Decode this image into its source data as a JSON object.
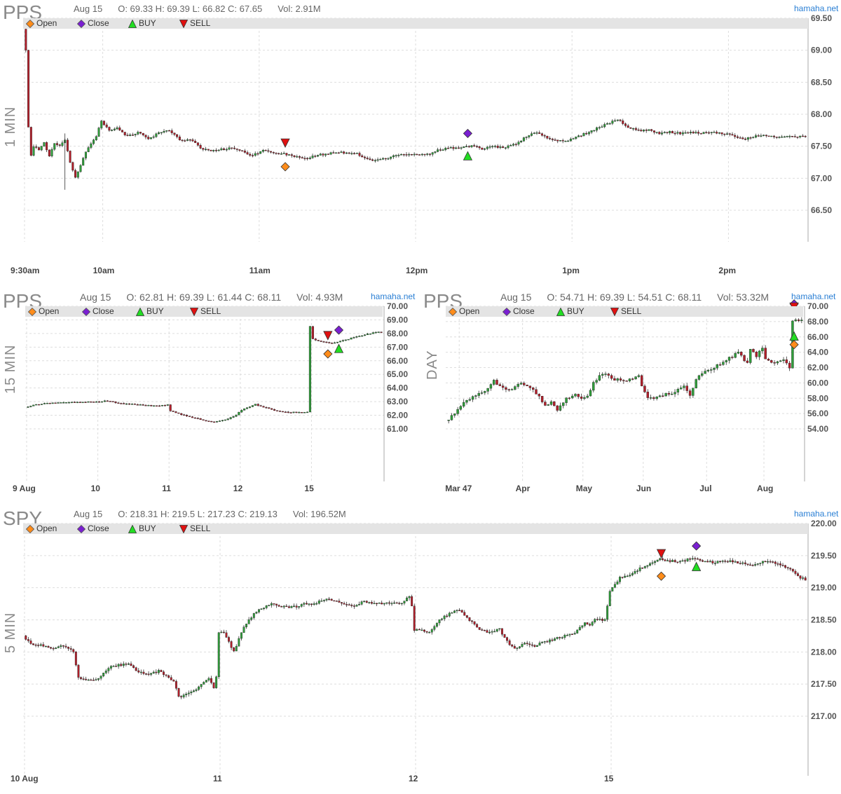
{
  "brand": "hamaha.net",
  "legend": [
    {
      "label": "Open",
      "shape": "diamond",
      "color": "#ff8c1a"
    },
    {
      "label": "Close",
      "shape": "diamond",
      "color": "#7a1fd1"
    },
    {
      "label": "BUY",
      "shape": "triangle-up",
      "color": "#22dd22"
    },
    {
      "label": "SELL",
      "shape": "triangle-down",
      "color": "#e01010"
    }
  ],
  "colors": {
    "up": "#2f9e3a",
    "down": "#b21e2a",
    "grid": "#dddddd",
    "axis": "#aaaaaa"
  },
  "panels": [
    {
      "id": "p1min",
      "ticker": "PPS",
      "timeframe": "1 MIN",
      "info": {
        "date": "Aug 15",
        "ohlc": "O: 69.33 H: 69.39 L: 66.82 C: 67.65",
        "vol": "Vol: 2.91M"
      }
    },
    {
      "id": "p15min",
      "ticker": "PPS",
      "timeframe": "15 MIN",
      "info": {
        "date": "Aug 15",
        "ohlc": "O: 62.81 H: 69.39 L: 61.44 C: 68.11",
        "vol": "Vol: 4.93M"
      }
    },
    {
      "id": "pday",
      "ticker": "PPS",
      "timeframe": "DAY",
      "info": {
        "date": "Aug 15",
        "ohlc": "O: 54.71 H: 69.39 L: 54.51 C: 68.11",
        "vol": "Vol: 53.32M"
      }
    },
    {
      "id": "p5min",
      "ticker": "SPY",
      "timeframe": "5 MIN",
      "info": {
        "date": "Aug 15",
        "ohlc": "O: 218.31 H: 219.5 L: 217.23 C: 219.13",
        "vol": "Vol: 196.52M"
      }
    }
  ],
  "chart_data": [
    {
      "type": "candlestick",
      "panel": "p1min",
      "ylim": [
        66.0,
        69.5
      ],
      "yticks": [
        "69.50",
        "69.00",
        "68.50",
        "68.00",
        "67.50",
        "67.00",
        "66.50"
      ],
      "xticks": [
        "9:30am",
        "10am",
        "11am",
        "12pm",
        "1pm",
        "2pm"
      ],
      "x_range_minutes": [
        0,
        300
      ],
      "xtick_minutes": [
        0,
        30,
        90,
        150,
        210,
        270
      ],
      "anchors": [
        [
          0,
          69.3
        ],
        [
          0.6,
          69.0
        ],
        [
          1,
          68.1
        ],
        [
          2,
          67.8
        ],
        [
          3,
          67.35
        ],
        [
          4,
          67.5
        ],
        [
          6,
          67.45
        ],
        [
          8,
          67.55
        ],
        [
          10,
          67.35
        ],
        [
          12,
          67.55
        ],
        [
          14,
          67.5
        ],
        [
          16,
          67.6
        ],
        [
          18,
          67.25
        ],
        [
          20,
          67.0
        ],
        [
          22,
          67.2
        ],
        [
          24,
          67.4
        ],
        [
          26,
          67.55
        ],
        [
          28,
          67.65
        ],
        [
          30,
          67.9
        ],
        [
          33,
          67.75
        ],
        [
          36,
          67.8
        ],
        [
          40,
          67.65
        ],
        [
          44,
          67.72
        ],
        [
          48,
          67.62
        ],
        [
          52,
          67.7
        ],
        [
          56,
          67.75
        ],
        [
          60,
          67.6
        ],
        [
          64,
          67.6
        ],
        [
          68,
          67.48
        ],
        [
          72,
          67.42
        ],
        [
          76,
          67.45
        ],
        [
          80,
          67.47
        ],
        [
          84,
          67.42
        ],
        [
          88,
          67.35
        ],
        [
          92,
          67.45
        ],
        [
          96,
          67.4
        ],
        [
          100,
          67.38
        ],
        [
          104,
          67.35
        ],
        [
          108,
          67.3
        ],
        [
          112,
          67.35
        ],
        [
          116,
          67.38
        ],
        [
          120,
          67.4
        ],
        [
          124,
          67.4
        ],
        [
          128,
          67.38
        ],
        [
          132,
          67.3
        ],
        [
          136,
          67.28
        ],
        [
          140,
          67.32
        ],
        [
          144,
          67.36
        ],
        [
          148,
          67.38
        ],
        [
          152,
          67.37
        ],
        [
          156,
          67.38
        ],
        [
          160,
          67.45
        ],
        [
          164,
          67.47
        ],
        [
          168,
          67.48
        ],
        [
          172,
          67.5
        ],
        [
          176,
          67.46
        ],
        [
          180,
          67.5
        ],
        [
          184,
          67.48
        ],
        [
          188,
          67.52
        ],
        [
          192,
          67.62
        ],
        [
          196,
          67.72
        ],
        [
          200,
          67.65
        ],
        [
          204,
          67.6
        ],
        [
          208,
          67.58
        ],
        [
          212,
          67.65
        ],
        [
          216,
          67.7
        ],
        [
          220,
          67.78
        ],
        [
          224,
          67.85
        ],
        [
          228,
          67.92
        ],
        [
          232,
          67.8
        ],
        [
          236,
          67.75
        ],
        [
          240,
          67.75
        ],
        [
          244,
          67.7
        ],
        [
          248,
          67.72
        ],
        [
          252,
          67.7
        ],
        [
          256,
          67.72
        ],
        [
          260,
          67.7
        ],
        [
          264,
          67.72
        ],
        [
          268,
          67.7
        ],
        [
          272,
          67.68
        ],
        [
          276,
          67.6
        ],
        [
          280,
          67.65
        ],
        [
          284,
          67.68
        ],
        [
          288,
          67.65
        ]
      ],
      "markers": [
        {
          "type": "SELL",
          "x": 100,
          "y": 67.55
        },
        {
          "type": "Open",
          "x": 100,
          "y": 67.18
        },
        {
          "type": "Close",
          "x": 170,
          "y": 67.7
        },
        {
          "type": "BUY",
          "x": 170,
          "y": 67.35
        }
      ]
    },
    {
      "type": "candlestick",
      "panel": "p15min",
      "ylim": [
        61.0,
        70.0
      ],
      "yticks": [
        "70.00",
        "69.00",
        "68.00",
        "67.00",
        "66.00",
        "65.00",
        "64.00",
        "63.00",
        "62.00",
        "61.00"
      ],
      "xticks": [
        "9 Aug",
        "10",
        "11",
        "12",
        "15"
      ],
      "xtick_index": [
        0,
        26,
        52,
        78,
        104
      ],
      "x_range": [
        0,
        130
      ],
      "anchors": [
        [
          0,
          62.6
        ],
        [
          4,
          62.8
        ],
        [
          10,
          62.9
        ],
        [
          18,
          62.95
        ],
        [
          26,
          63.0
        ],
        [
          30,
          63.05
        ],
        [
          34,
          62.9
        ],
        [
          40,
          62.8
        ],
        [
          46,
          62.7
        ],
        [
          52,
          62.75
        ],
        [
          53,
          62.3
        ],
        [
          58,
          62.0
        ],
        [
          64,
          61.7
        ],
        [
          68,
          61.5
        ],
        [
          72,
          61.6
        ],
        [
          76,
          61.9
        ],
        [
          80,
          62.5
        ],
        [
          84,
          62.8
        ],
        [
          90,
          62.4
        ],
        [
          96,
          62.2
        ],
        [
          103,
          62.25
        ],
        [
          104,
          68.5
        ],
        [
          105,
          67.6
        ],
        [
          108,
          67.4
        ],
        [
          112,
          67.3
        ],
        [
          116,
          67.5
        ],
        [
          120,
          67.7
        ],
        [
          124,
          67.9
        ],
        [
          128,
          68.1
        ],
        [
          130,
          68.1
        ]
      ],
      "segments_break": [
        103
      ],
      "markers": [
        {
          "type": "SELL",
          "x": 110,
          "y": 67.85
        },
        {
          "type": "Open",
          "x": 110,
          "y": 66.5
        },
        {
          "type": "Close",
          "x": 114,
          "y": 68.25
        },
        {
          "type": "BUY",
          "x": 114,
          "y": 66.9
        }
      ]
    },
    {
      "type": "candlestick",
      "panel": "pday",
      "ylim": [
        54.0,
        70.0
      ],
      "yticks": [
        "70.00",
        "68.00",
        "66.00",
        "64.00",
        "62.00",
        "60.00",
        "58.00",
        "56.00",
        "54.00"
      ],
      "xticks": [
        "Mar 47",
        "Apr",
        "May",
        "Jun",
        "Jul",
        "Aug"
      ],
      "xtick_index": [
        4,
        25,
        45,
        65,
        86,
        105
      ],
      "x_range": [
        0,
        118
      ],
      "anchors": [
        [
          0,
          55.0
        ],
        [
          3,
          56.0
        ],
        [
          6,
          57.5
        ],
        [
          10,
          58.5
        ],
        [
          14,
          59.2
        ],
        [
          16,
          60.2
        ],
        [
          19,
          59.3
        ],
        [
          22,
          59.0
        ],
        [
          24,
          60.0
        ],
        [
          28,
          59.3
        ],
        [
          31,
          58.3
        ],
        [
          33,
          57.0
        ],
        [
          35,
          57.5
        ],
        [
          37,
          56.3
        ],
        [
          40,
          58.0
        ],
        [
          43,
          58.5
        ],
        [
          45,
          57.8
        ],
        [
          47,
          58.3
        ],
        [
          49,
          60.0
        ],
        [
          51,
          61.0
        ],
        [
          53,
          61.0
        ],
        [
          56,
          60.5
        ],
        [
          59,
          60.2
        ],
        [
          62,
          60.5
        ],
        [
          64,
          60.8
        ],
        [
          65,
          59.6
        ],
        [
          67,
          58.0
        ],
        [
          70,
          58.1
        ],
        [
          73,
          58.5
        ],
        [
          76,
          58.8
        ],
        [
          79,
          59.5
        ],
        [
          81,
          58.2
        ],
        [
          83,
          60.5
        ],
        [
          86,
          61.5
        ],
        [
          90,
          62.3
        ],
        [
          94,
          63.2
        ],
        [
          97,
          64.0
        ],
        [
          100,
          62.5
        ],
        [
          101,
          64.5
        ],
        [
          103,
          63.5
        ],
        [
          105,
          64.5
        ],
        [
          106,
          63.2
        ],
        [
          109,
          62.5
        ],
        [
          112,
          63.0
        ],
        [
          114,
          62.0
        ],
        [
          115,
          68.1
        ],
        [
          116,
          68.1
        ]
      ],
      "markers": [
        {
          "type": "Close",
          "x": 115,
          "y": 70.3
        },
        {
          "type": "SELL",
          "x": 115,
          "y": 69.9
        },
        {
          "type": "BUY",
          "x": 115,
          "y": 66.1
        },
        {
          "type": "Open",
          "x": 115,
          "y": 65.0
        }
      ]
    },
    {
      "type": "candlestick",
      "panel": "p5min",
      "ylim": [
        216.5,
        220.0
      ],
      "yticks": [
        "220.00",
        "219.50",
        "219.00",
        "218.50",
        "218.00",
        "217.50",
        "217.00"
      ],
      "xticks": [
        "10 Aug",
        "11",
        "12",
        "15"
      ],
      "xtick_index": [
        0,
        78,
        156,
        234
      ],
      "x_range": [
        0,
        312
      ],
      "anchors": [
        [
          0,
          218.25
        ],
        [
          4,
          218.1
        ],
        [
          8,
          218.1
        ],
        [
          12,
          218.05
        ],
        [
          16,
          218.1
        ],
        [
          20,
          218.0
        ],
        [
          22,
          217.6
        ],
        [
          26,
          217.55
        ],
        [
          30,
          217.6
        ],
        [
          34,
          217.75
        ],
        [
          38,
          217.8
        ],
        [
          42,
          217.8
        ],
        [
          46,
          217.7
        ],
        [
          50,
          217.65
        ],
        [
          54,
          217.7
        ],
        [
          58,
          217.6
        ],
        [
          60,
          217.55
        ],
        [
          62,
          217.3
        ],
        [
          66,
          217.35
        ],
        [
          70,
          217.45
        ],
        [
          74,
          217.6
        ],
        [
          76,
          217.45
        ],
        [
          77,
          217.6
        ],
        [
          78,
          218.3
        ],
        [
          80,
          218.3
        ],
        [
          84,
          218.0
        ],
        [
          88,
          218.4
        ],
        [
          92,
          218.6
        ],
        [
          96,
          218.7
        ],
        [
          100,
          218.75
        ],
        [
          104,
          218.7
        ],
        [
          108,
          218.7
        ],
        [
          112,
          218.75
        ],
        [
          116,
          218.75
        ],
        [
          120,
          218.82
        ],
        [
          124,
          218.8
        ],
        [
          128,
          218.75
        ],
        [
          132,
          218.7
        ],
        [
          136,
          218.8
        ],
        [
          140,
          218.75
        ],
        [
          144,
          218.75
        ],
        [
          150,
          218.75
        ],
        [
          154,
          218.85
        ],
        [
          155,
          218.7
        ],
        [
          156,
          218.35
        ],
        [
          158,
          218.35
        ],
        [
          162,
          218.3
        ],
        [
          166,
          218.5
        ],
        [
          170,
          218.6
        ],
        [
          174,
          218.65
        ],
        [
          178,
          218.5
        ],
        [
          182,
          218.35
        ],
        [
          186,
          218.3
        ],
        [
          190,
          218.35
        ],
        [
          194,
          218.1
        ],
        [
          196,
          218.05
        ],
        [
          200,
          218.15
        ],
        [
          204,
          218.1
        ],
        [
          208,
          218.15
        ],
        [
          212,
          218.2
        ],
        [
          216,
          218.25
        ],
        [
          220,
          218.3
        ],
        [
          224,
          218.45
        ],
        [
          226,
          218.4
        ],
        [
          228,
          218.5
        ],
        [
          232,
          218.5
        ],
        [
          234,
          218.95
        ],
        [
          238,
          219.15
        ],
        [
          242,
          219.2
        ],
        [
          246,
          219.3
        ],
        [
          250,
          219.38
        ],
        [
          254,
          219.45
        ],
        [
          258,
          219.42
        ],
        [
          262,
          219.4
        ],
        [
          266,
          219.45
        ],
        [
          270,
          219.42
        ],
        [
          274,
          219.4
        ],
        [
          278,
          219.4
        ],
        [
          282,
          219.42
        ],
        [
          286,
          219.38
        ],
        [
          290,
          219.35
        ],
        [
          294,
          219.4
        ],
        [
          298,
          219.4
        ],
        [
          302,
          219.35
        ],
        [
          306,
          219.28
        ],
        [
          310,
          219.15
        ],
        [
          312,
          219.13
        ]
      ],
      "markers": [
        {
          "type": "SELL",
          "x": 254,
          "y": 219.53
        },
        {
          "type": "Open",
          "x": 254,
          "y": 219.18
        },
        {
          "type": "Close",
          "x": 268,
          "y": 219.65
        },
        {
          "type": "BUY",
          "x": 268,
          "y": 219.33
        }
      ]
    }
  ]
}
